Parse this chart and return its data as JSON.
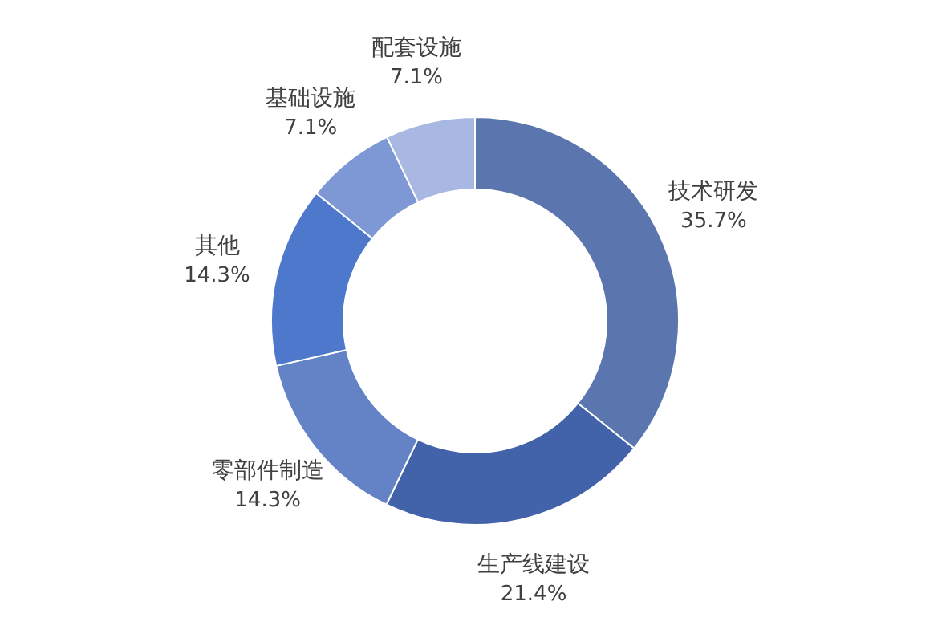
{
  "chart_data": {
    "type": "donut",
    "categories": [
      "技术研发",
      "生产线建设",
      "零部件制造",
      "其他",
      "基础设施",
      "配套设施"
    ],
    "values": [
      35.7,
      21.4,
      14.3,
      14.3,
      7.1,
      7.1
    ],
    "value_labels": [
      "35.7%",
      "21.4%",
      "14.3%",
      "14.3%",
      "7.1%",
      "7.1%"
    ],
    "colors": [
      "#5b75ae",
      "#4262aa",
      "#6383c6",
      "#4d78cc",
      "#7d98d4",
      "#a9b8e3"
    ],
    "legend": false
  }
}
